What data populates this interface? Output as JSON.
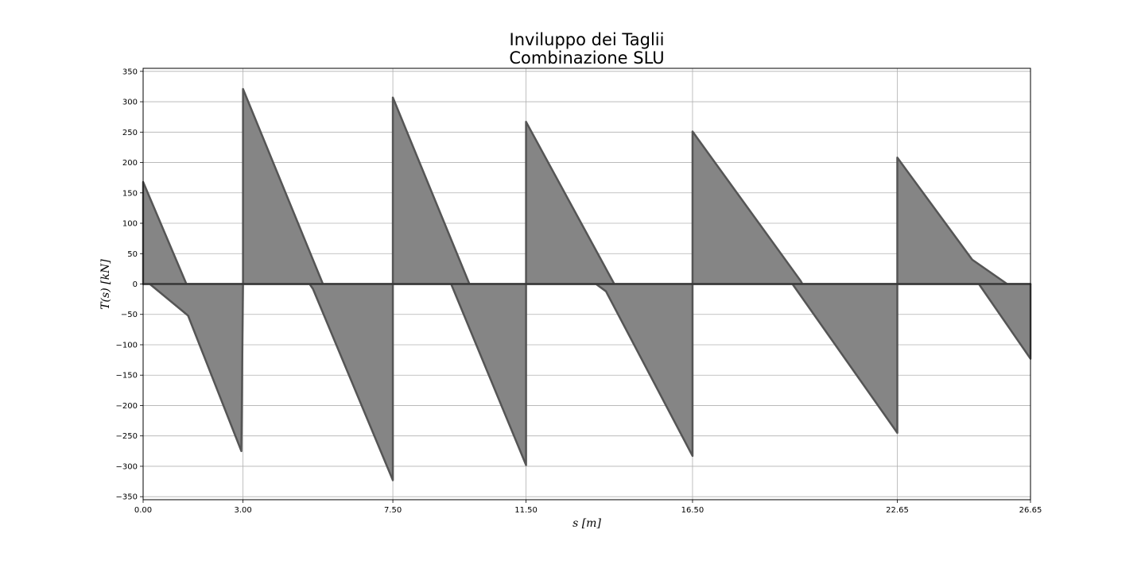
{
  "chart_data": {
    "type": "area",
    "title": "Inviluppo dei Taglii",
    "subtitle": "Combinazione SLU",
    "xlabel": "s [m]",
    "ylabel": "T(s) [kN]",
    "xlim": [
      0.0,
      26.65
    ],
    "ylim": [
      -355,
      355
    ],
    "x_ticks": [
      0.0,
      3.0,
      7.5,
      11.5,
      16.5,
      22.65,
      26.65
    ],
    "x_tick_labels": [
      "0.00",
      "3.00",
      "7.50",
      "11.50",
      "16.50",
      "22.65",
      "26.65"
    ],
    "y_ticks": [
      -350,
      -300,
      -250,
      -200,
      -150,
      -100,
      -50,
      0,
      50,
      100,
      150,
      200,
      250,
      300,
      350
    ],
    "y_tick_labels": [
      "−350",
      "−300",
      "−250",
      "−200",
      "−150",
      "−100",
      "−50",
      "0",
      "50",
      "100",
      "150",
      "200",
      "250",
      "300",
      "350"
    ],
    "grid": true,
    "fill_color": "#858585",
    "edge_color": "#555555",
    "series": [
      {
        "values": [
          [
            0.0,
            0
          ],
          [
            0.0,
            168
          ],
          [
            1.3,
            0
          ],
          [
            3.0,
            0
          ],
          [
            3.0,
            321
          ],
          [
            5.4,
            0
          ],
          [
            7.5,
            0
          ],
          [
            7.5,
            307
          ],
          [
            9.8,
            0
          ],
          [
            11.5,
            0
          ],
          [
            11.5,
            267
          ],
          [
            14.15,
            0
          ],
          [
            16.5,
            0
          ],
          [
            16.5,
            251
          ],
          [
            19.75,
            5
          ],
          [
            19.8,
            0
          ],
          [
            22.65,
            0
          ],
          [
            22.65,
            208
          ],
          [
            24.9,
            40
          ],
          [
            25.95,
            0
          ],
          [
            26.65,
            0
          ]
        ]
      },
      {
        "values": [
          [
            0.0,
            0
          ],
          [
            0.2,
            0
          ],
          [
            1.35,
            -52
          ],
          [
            2.95,
            -275
          ],
          [
            3.0,
            0
          ],
          [
            5.0,
            0
          ],
          [
            5.1,
            -8
          ],
          [
            7.5,
            -323
          ],
          [
            7.5,
            0
          ],
          [
            9.25,
            0
          ],
          [
            11.5,
            -298
          ],
          [
            11.5,
            0
          ],
          [
            13.6,
            0
          ],
          [
            13.9,
            -12
          ],
          [
            16.5,
            -283
          ],
          [
            16.5,
            0
          ],
          [
            19.5,
            0
          ],
          [
            22.65,
            -245
          ],
          [
            22.65,
            0
          ],
          [
            25.1,
            0
          ],
          [
            26.65,
            -123
          ],
          [
            26.65,
            0
          ]
        ]
      }
    ]
  }
}
